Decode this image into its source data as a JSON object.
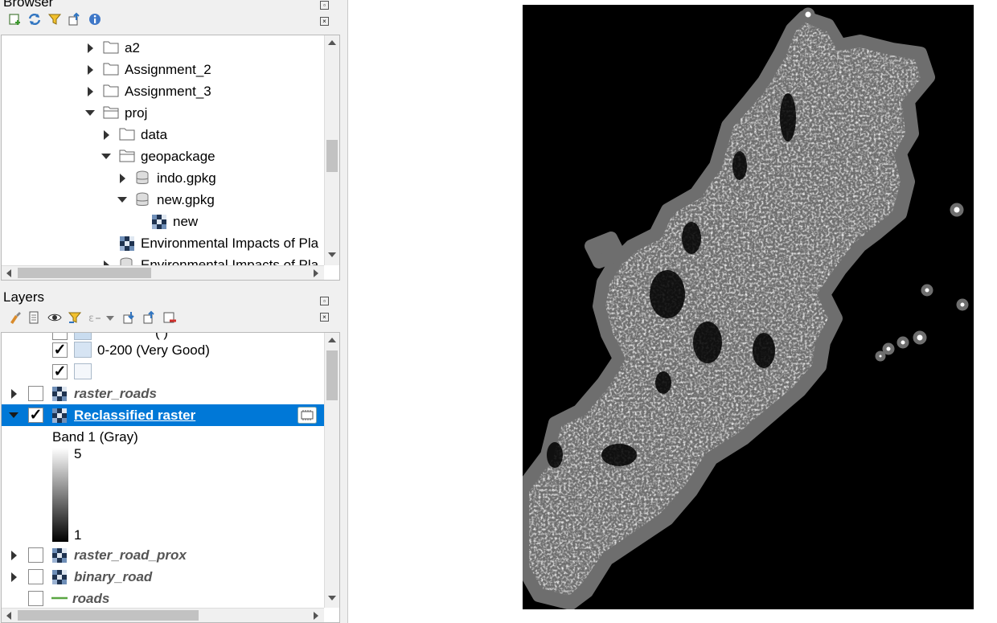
{
  "browser": {
    "title": "Browser",
    "tree": [
      {
        "label": "a2",
        "type": "folder"
      },
      {
        "label": "Assignment_2",
        "type": "folder"
      },
      {
        "label": "Assignment_3",
        "type": "folder"
      },
      {
        "label": "proj",
        "type": "folder-open"
      },
      {
        "label": "data",
        "type": "folder"
      },
      {
        "label": "geopackage",
        "type": "folder-open"
      },
      {
        "label": "indo.gpkg",
        "type": "database"
      },
      {
        "label": "new.gpkg",
        "type": "database"
      },
      {
        "label": "new",
        "type": "raster"
      },
      {
        "label": "Environmental Impacts of Pla",
        "type": "raster"
      },
      {
        "label": "Environmental Impacts of Pla",
        "type": "database"
      }
    ]
  },
  "layers": {
    "title": "Layers",
    "legend_item_cut": "(  )",
    "legend_item_1": "0-200 (Very Good)",
    "legend_item_2": "",
    "raster_roads": "raster_roads",
    "reclassified": "Reclassified raster",
    "band": "Band 1 (Gray)",
    "ramp_max": "5",
    "ramp_min": "1",
    "raster_road_prox": "raster_road_prox",
    "binary_road": "binary_road",
    "roads": "roads"
  },
  "colors": {
    "selection": "#0078d7",
    "map_background": "#000000",
    "swatch": "#d6e4f3"
  },
  "icons": {
    "browser_toolbar": [
      "add-layer-icon",
      "refresh-icon",
      "filter-icon",
      "collapse-all-icon",
      "info-icon"
    ],
    "layers_toolbar": [
      "style-icon",
      "add-group-icon",
      "visibility-icon",
      "filter-legend-icon",
      "expression-filter-icon",
      "expand-all-icon",
      "collapse-all-icon",
      "remove-layer-icon"
    ]
  }
}
